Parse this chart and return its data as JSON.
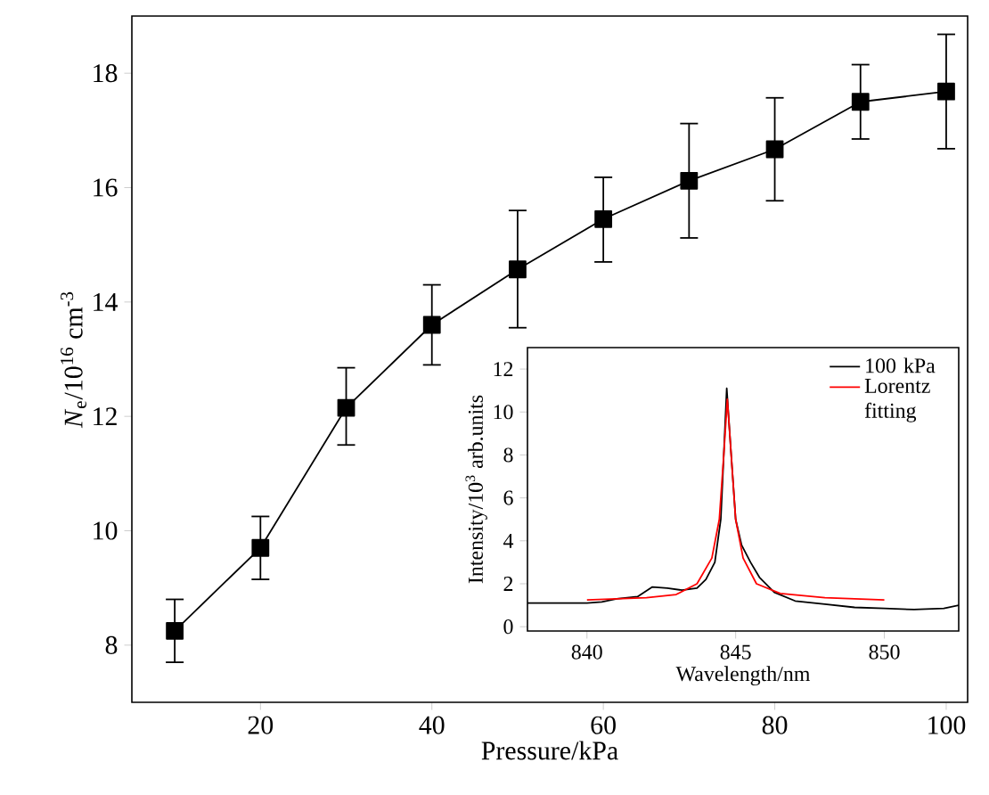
{
  "chart_data": [
    {
      "type": "line",
      "xlabel": "Pressure/kPa",
      "ylabel": "*N*$_{e}$/10$^{16}$ cm$^{-3}$",
      "xlim": [
        5,
        102.5
      ],
      "ylim": [
        7,
        19
      ],
      "xticks": [
        20,
        40,
        60,
        80,
        100
      ],
      "yticks": [
        8,
        10,
        12,
        14,
        16,
        18
      ],
      "marker": "square",
      "line_style": "solid",
      "x": [
        10,
        20,
        30,
        40,
        50,
        60,
        70,
        80,
        90,
        100
      ],
      "series": [
        {
          "color": "#000000",
          "values": [
            8.25,
            9.7,
            12.15,
            13.6,
            14.57,
            15.45,
            16.12,
            16.67,
            17.5,
            17.68
          ],
          "errors": [
            [
              7.7,
              8.8
            ],
            [
              9.15,
              10.25
            ],
            [
              11.5,
              12.85
            ],
            [
              12.9,
              14.3
            ],
            [
              13.55,
              15.6
            ],
            [
              14.7,
              16.18
            ],
            [
              15.12,
              17.12
            ],
            [
              15.77,
              17.57
            ],
            [
              16.85,
              18.15
            ],
            [
              16.68,
              18.68
            ]
          ]
        }
      ]
    },
    {
      "type": "line",
      "xlabel": "Wavelength/nm",
      "ylabel": "Intensity/10$^{3}$ arb.units",
      "xlim": [
        838,
        852.5
      ],
      "ylim": [
        -0.2,
        13
      ],
      "xticks": [
        840,
        845,
        850
      ],
      "yticks": [
        0,
        2,
        4,
        6,
        8,
        10,
        12
      ],
      "legend": "top right",
      "line_style": "solid",
      "series": [
        {
          "name": "100 kPa",
          "color": "#000000",
          "x": [
            838,
            839,
            840,
            840.5,
            841,
            841.7,
            842.2,
            842.7,
            843.2,
            843.7,
            844,
            844.3,
            844.5,
            844.6,
            844.7,
            844.85,
            845,
            845.2,
            845.5,
            845.8,
            846.3,
            847,
            848,
            849,
            850,
            851,
            852,
            852.5
          ],
          "values": [
            1.1,
            1.1,
            1.1,
            1.15,
            1.3,
            1.4,
            1.85,
            1.8,
            1.7,
            1.8,
            2.2,
            3,
            5,
            8,
            11.1,
            8,
            5,
            3.8,
            3.0,
            2.3,
            1.6,
            1.2,
            1.05,
            0.9,
            0.85,
            0.8,
            0.85,
            1.0
          ]
        },
        {
          "name": "Lorentz fitting",
          "color": "#ff0000",
          "x": [
            840,
            842,
            843,
            843.7,
            844.2,
            844.45,
            844.6,
            844.72,
            844.85,
            845,
            845.25,
            845.7,
            846.5,
            848,
            850
          ],
          "values": [
            1.25,
            1.35,
            1.5,
            2,
            3.2,
            5,
            8,
            10.6,
            8,
            5,
            3.2,
            2,
            1.55,
            1.35,
            1.25
          ]
        }
      ]
    }
  ]
}
